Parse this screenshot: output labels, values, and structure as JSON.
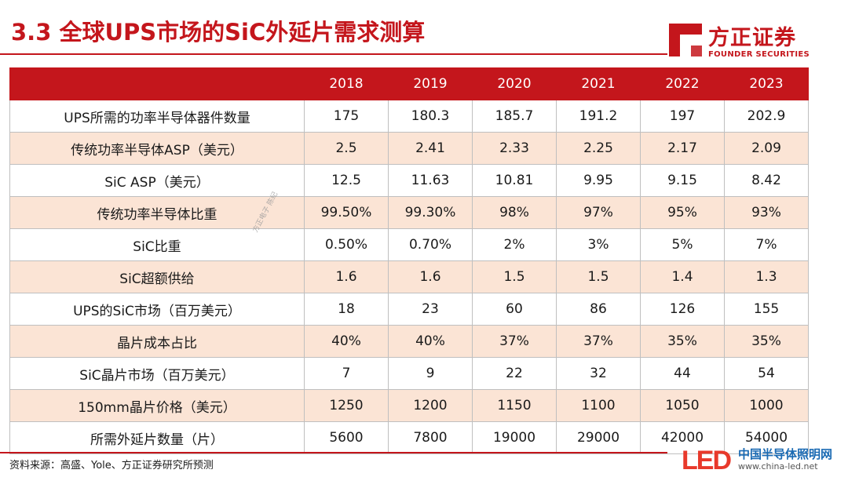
{
  "title": "3.3 全球UPS市场的SiC外延片需求测算",
  "brand": {
    "name_cn": "方正证券",
    "name_en": "FOUNDER SECURITIES",
    "color": "#c4161c"
  },
  "table": {
    "corner": "",
    "years": [
      "2018",
      "2019",
      "2020",
      "2021",
      "2022",
      "2023"
    ],
    "rows": [
      {
        "label": "UPS所需的功率半导体器件数量",
        "values": [
          "175",
          "180.3",
          "185.7",
          "191.2",
          "197",
          "202.9"
        ]
      },
      {
        "label": "传统功率半导体ASP（美元）",
        "values": [
          "2.5",
          "2.41",
          "2.33",
          "2.25",
          "2.17",
          "2.09"
        ]
      },
      {
        "label": "SiC ASP（美元）",
        "values": [
          "12.5",
          "11.63",
          "10.81",
          "9.95",
          "9.15",
          "8.42"
        ]
      },
      {
        "label": "传统功率半导体比重",
        "values": [
          "99.50%",
          "99.30%",
          "98%",
          "97%",
          "95%",
          "93%"
        ]
      },
      {
        "label": "SiC比重",
        "values": [
          "0.50%",
          "0.70%",
          "2%",
          "3%",
          "5%",
          "7%"
        ]
      },
      {
        "label": "SiC超额供给",
        "values": [
          "1.6",
          "1.6",
          "1.5",
          "1.5",
          "1.4",
          "1.3"
        ]
      },
      {
        "label": "UPS的SiC市场（百万美元）",
        "values": [
          "18",
          "23",
          "60",
          "86",
          "126",
          "155"
        ]
      },
      {
        "label": "晶片成本占比",
        "values": [
          "40%",
          "40%",
          "37%",
          "37%",
          "35%",
          "35%"
        ]
      },
      {
        "label": "SiC晶片市场（百万美元）",
        "values": [
          "7",
          "9",
          "22",
          "32",
          "44",
          "54"
        ]
      },
      {
        "label": "150mm晶片价格（美元）",
        "values": [
          "1250",
          "1200",
          "1150",
          "1100",
          "1050",
          "1000"
        ]
      },
      {
        "label": "所需外延片数量（片）",
        "values": [
          "5600",
          "7800",
          "19000",
          "29000",
          "42000",
          "54000"
        ]
      }
    ]
  },
  "watermark": "方正电子 陈纪",
  "source": "资料来源：高盛、Yole、方正证券研究所预测",
  "site_logo": {
    "mark": "LED",
    "name_cn": "中国半导体照明网",
    "url": "www.china-led.net"
  }
}
